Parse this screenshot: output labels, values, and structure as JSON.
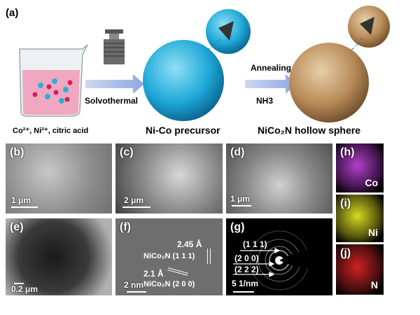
{
  "scheme": {
    "label": "(a)",
    "step1": "Solvothermal",
    "step2_top": "Annealing",
    "step2_bottom": "NH3",
    "captions": [
      "Co²⁺, Ni²⁺, citric acid",
      "Ni-Co precursor",
      "NiCo₂N hollow sphere"
    ]
  },
  "panels": {
    "b": {
      "label": "(b)",
      "scale": "1 μm"
    },
    "c": {
      "label": "(c)",
      "scale": "2 μm"
    },
    "d": {
      "label": "(d)",
      "scale": "1 μm"
    },
    "e": {
      "label": "(e)",
      "scale": "0.2 μm"
    },
    "f": {
      "label": "(f)",
      "scale": "2 nm",
      "ann1": "2.45 Å",
      "ann2": "NiCo₂N  (1 1 1)",
      "ann3": "2.1 Å",
      "ann4": "NiCo₂N  (2 0 0)"
    },
    "g": {
      "label": "(g)",
      "scale": "5 1/nm",
      "rings": [
        "(1 1 1)",
        "(2 0 0)",
        "(2 2 2)"
      ]
    },
    "h": {
      "label": "(h)",
      "element": "Co",
      "color": "#b040c8"
    },
    "i": {
      "label": "(i)",
      "element": "Ni",
      "color": "#d8d820"
    },
    "j": {
      "label": "(j)",
      "element": "N",
      "color": "#d02020"
    }
  }
}
